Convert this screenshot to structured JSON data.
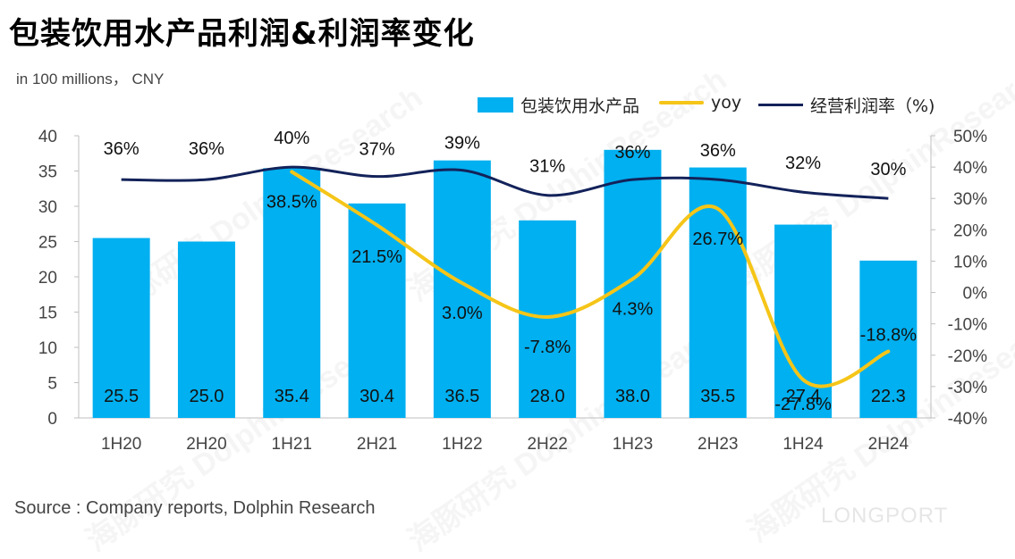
{
  "header": {
    "title": "包装饮用水产品利润&利润率变化",
    "unit": "in 100 millions， CNY"
  },
  "footer": {
    "source": "Source : Company reports, Dolphin Research",
    "brand": "LONGPORT"
  },
  "watermarks": [
    "海豚研究 DolphinResearch",
    "海豚研究 DolphinResearch",
    "海豚研究 DolphinResearch",
    "海豚研究 DolphinResearch",
    "海豚研究 DolphinResearch",
    "海豚研究 DolphinResearch"
  ],
  "chart_data": {
    "type": "bar",
    "categories": [
      "1H20",
      "2H20",
      "1H21",
      "2H21",
      "1H22",
      "2H22",
      "1H23",
      "2H23",
      "1H24",
      "2H24"
    ],
    "series": [
      {
        "name": "包装饮用水产品",
        "type": "bar",
        "axis": "left",
        "values": [
          25.5,
          25.0,
          35.4,
          30.4,
          36.5,
          28.0,
          38.0,
          35.5,
          27.4,
          22.3
        ],
        "labels": [
          "25.5",
          "25.0",
          "35.4",
          "30.4",
          "36.5",
          "28.0",
          "38.0",
          "35.5",
          "27.4",
          "22.3"
        ],
        "color": "#00b0f0"
      },
      {
        "name": "yoy",
        "type": "line",
        "axis": "right",
        "values": [
          null,
          null,
          38.5,
          21.5,
          3.0,
          -7.8,
          4.3,
          26.7,
          -27.8,
          -18.8
        ],
        "labels": [
          "",
          "",
          "38.5%",
          "21.5%",
          "3.0%",
          "-7.8%",
          "4.3%",
          "26.7%",
          "-27.8%",
          "-18.8%"
        ],
        "color": "#f5c518"
      },
      {
        "name": "经营利润率（%)",
        "type": "line",
        "axis": "right",
        "values": [
          36,
          36,
          40,
          37,
          39,
          31,
          36,
          36,
          32,
          30
        ],
        "labels": [
          "36%",
          "36%",
          "40%",
          "37%",
          "39%",
          "31%",
          "36%",
          "36%",
          "32%",
          "30%"
        ],
        "color": "#13225a"
      }
    ],
    "left_axis": {
      "min": 0,
      "max": 40,
      "ticks": [
        "0",
        "5",
        "10",
        "15",
        "20",
        "25",
        "30",
        "35",
        "40"
      ]
    },
    "right_axis": {
      "min": -40,
      "max": 50,
      "ticks": [
        "-40%",
        "-30%",
        "-20%",
        "-10%",
        "0%",
        "10%",
        "20%",
        "30%",
        "40%",
        "50%"
      ]
    },
    "legend_position": "top-right",
    "grid": false
  }
}
